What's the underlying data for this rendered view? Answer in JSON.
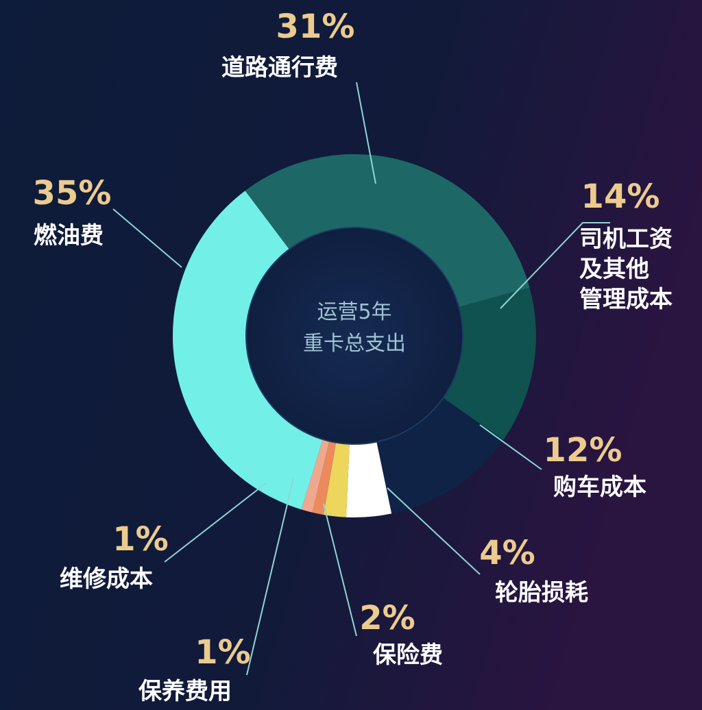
{
  "chart_data": {
    "type": "pie",
    "center_label": "运营5年\n重卡总支出",
    "categories": [
      "道路通行费",
      "司机工资\n及其他\n管理成本",
      "购车成本",
      "轮胎损耗",
      "保险费",
      "保养费用",
      "维修成本",
      "燃油费"
    ],
    "values": [
      31,
      14,
      12,
      4,
      2,
      1,
      1,
      35
    ],
    "value_labels": [
      "31%",
      "14%",
      "12%",
      "4%",
      "2%",
      "1%",
      "1%",
      "35%"
    ],
    "colors": [
      "#1d6867",
      "#0f524f",
      "#0f2346",
      "#ffffff",
      "#ecd65c",
      "#ec8a5e",
      "#efa88e",
      "#72f0e8"
    ]
  }
}
